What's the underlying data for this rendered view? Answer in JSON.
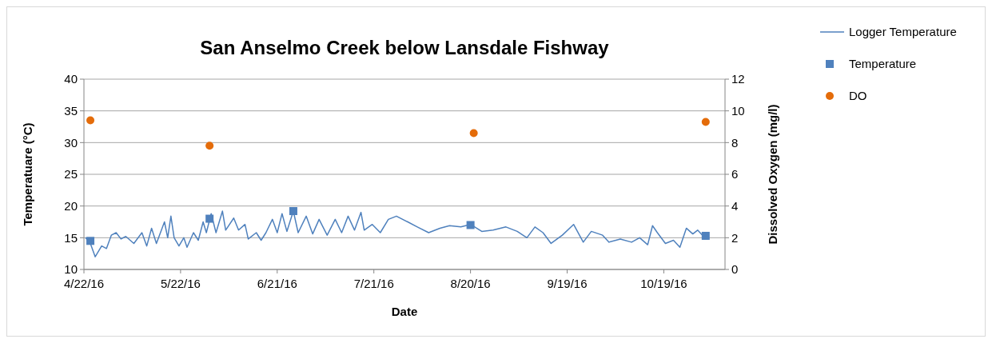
{
  "chart_data": {
    "type": "line",
    "title": "San Anselmo Creek below Lansdale Fishway",
    "xlabel": "Date",
    "ylabel": "Temperatuare (°C)",
    "y2label": "Dissolved Oxygen (mg/l)",
    "xlim": [
      "2016-04-22",
      "2016-11-07"
    ],
    "xticks": [
      {
        "value": "2016-04-22",
        "label": "4/22/16"
      },
      {
        "value": "2016-05-22",
        "label": "5/22/16"
      },
      {
        "value": "2016-06-21",
        "label": "6/21/16"
      },
      {
        "value": "2016-07-21",
        "label": "7/21/16"
      },
      {
        "value": "2016-08-20",
        "label": "8/20/16"
      },
      {
        "value": "2016-09-19",
        "label": "9/19/16"
      },
      {
        "value": "2016-10-19",
        "label": "10/19/16"
      }
    ],
    "ylim": [
      10,
      40
    ],
    "yticks": [
      10,
      15,
      20,
      25,
      30,
      35,
      40
    ],
    "y2lim": [
      0,
      12
    ],
    "y2ticks": [
      0,
      2,
      4,
      6,
      8,
      10,
      12
    ],
    "grid": "y",
    "legend": "right",
    "series": [
      {
        "name": "Logger Temperature",
        "marker": "none",
        "color": "#4f81bd",
        "x": [
          "2016-04-22T12:00",
          "2016-04-24",
          "2016-04-25T12:00",
          "2016-04-27T12:00",
          "2016-04-29",
          "2016-04-30T12:00",
          "2016-05-02",
          "2016-05-03T12:00",
          "2016-05-05",
          "2016-05-07T12:00",
          "2016-05-10",
          "2016-05-11T12:00",
          "2016-05-13",
          "2016-05-14T12:00",
          "2016-05-17",
          "2016-05-18",
          "2016-05-19",
          "2016-05-20",
          "2016-05-21T12:00",
          "2016-05-23",
          "2016-05-24",
          "2016-05-26",
          "2016-05-27T12:00",
          "2016-05-29",
          "2016-05-30",
          "2016-05-31T12:00",
          "2016-06-02",
          "2016-06-04",
          "2016-06-05",
          "2016-06-07T12:00",
          "2016-06-09",
          "2016-06-11",
          "2016-06-12",
          "2016-06-14T12:00",
          "2016-06-16",
          "2016-06-17T12:00",
          "2016-06-19T12:00",
          "2016-06-21",
          "2016-06-22T12:00",
          "2016-06-24",
          "2016-06-26",
          "2016-06-27T12:00",
          "2016-06-30",
          "2016-07-02",
          "2016-07-04",
          "2016-07-06T12:00",
          "2016-07-09",
          "2016-07-11",
          "2016-07-13",
          "2016-07-15",
          "2016-07-17",
          "2016-07-18",
          "2016-07-20T12:00",
          "2016-07-23",
          "2016-07-25T12:00",
          "2016-07-28",
          "2016-07-31T12:00",
          "2016-08-03T12:00",
          "2016-08-07",
          "2016-08-10T12:00",
          "2016-08-13T12:00",
          "2016-08-17",
          "2016-08-20",
          "2016-08-23T12:00",
          "2016-08-27",
          "2016-08-31",
          "2016-09-03T12:00",
          "2016-09-06T12:00",
          "2016-09-09",
          "2016-09-11T12:00",
          "2016-09-14",
          "2016-09-17T12:00",
          "2016-09-21",
          "2016-09-24",
          "2016-09-26T12:00",
          "2016-09-30",
          "2016-10-02",
          "2016-10-05T12:00",
          "2016-10-09",
          "2016-10-11T12:00",
          "2016-10-14",
          "2016-10-15T12:00",
          "2016-10-17",
          "2016-10-19T12:00",
          "2016-10-22",
          "2016-10-24",
          "2016-10-26",
          "2016-10-28",
          "2016-10-29T12:00",
          "2016-10-31",
          "2016-11-01T12:00"
        ],
        "values": [
          15.0,
          14.1,
          12.0,
          13.7,
          13.3,
          15.4,
          15.8,
          14.8,
          15.2,
          14.1,
          15.8,
          13.7,
          16.5,
          14.1,
          17.5,
          15.0,
          18.4,
          15.0,
          13.7,
          15.0,
          13.5,
          15.8,
          14.6,
          17.5,
          15.8,
          18.8,
          15.8,
          19.2,
          16.2,
          18.1,
          16.2,
          17.1,
          14.8,
          15.8,
          14.6,
          15.8,
          17.9,
          15.8,
          18.8,
          16.0,
          19.2,
          15.8,
          18.4,
          15.6,
          17.9,
          15.4,
          17.9,
          15.8,
          18.4,
          16.2,
          19.0,
          16.2,
          17.1,
          15.8,
          17.9,
          18.4,
          17.5,
          16.7,
          15.8,
          16.5,
          16.9,
          16.7,
          17.1,
          16.0,
          16.2,
          16.7,
          16.0,
          15.0,
          16.7,
          15.8,
          14.1,
          15.4,
          17.1,
          14.3,
          16.0,
          15.4,
          14.3,
          14.8,
          14.3,
          15.0,
          13.9,
          16.9,
          15.8,
          14.1,
          14.6,
          13.5,
          16.5,
          15.6,
          16.2,
          15.4,
          15.0
        ]
      },
      {
        "name": "Temperature",
        "type": "scatter",
        "marker": "square",
        "color": "#4f81bd",
        "x": [
          "2016-04-24",
          "2016-05-31",
          "2016-06-26",
          "2016-08-20",
          "2016-11-01"
        ],
        "values": [
          14.5,
          18.0,
          19.2,
          17.0,
          15.3
        ]
      },
      {
        "name": "DO",
        "type": "scatter",
        "marker": "circle",
        "axis": "y2",
        "color": "#e46c0a",
        "x": [
          "2016-04-24",
          "2016-05-31",
          "2016-08-21",
          "2016-11-01"
        ],
        "values": [
          9.4,
          7.8,
          8.6,
          9.3
        ]
      }
    ]
  }
}
